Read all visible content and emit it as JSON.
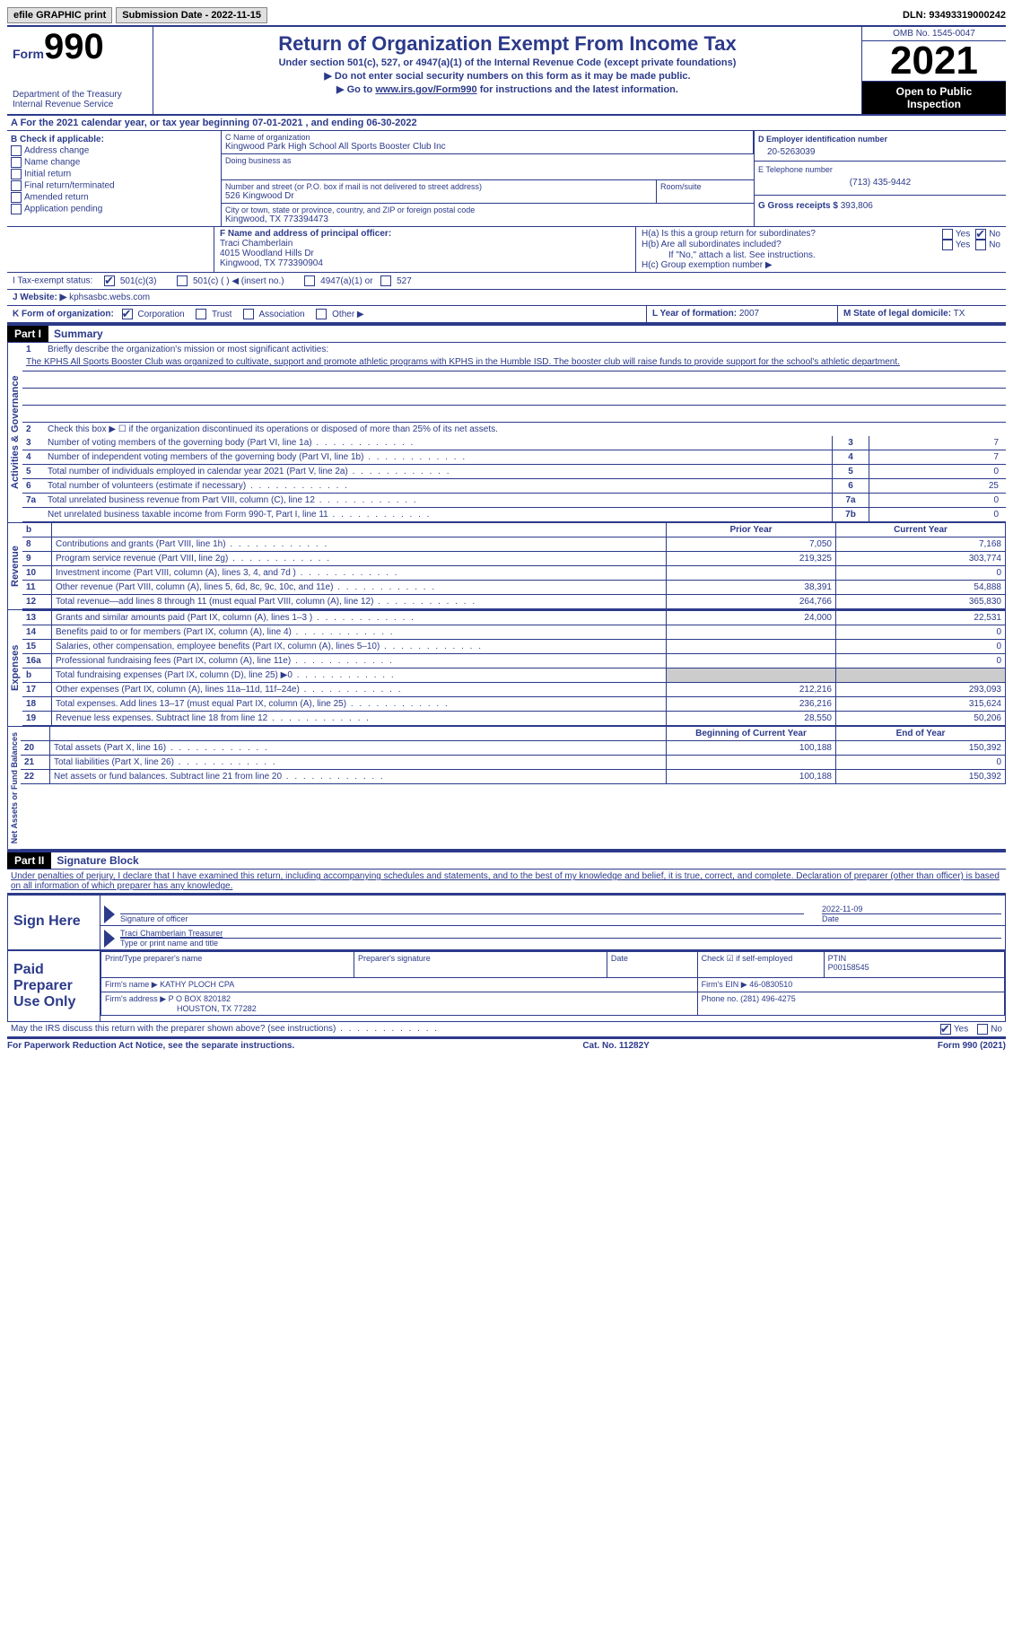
{
  "topbar": {
    "efile": "efile GRAPHIC print",
    "sub_date_label": "Submission Date - 2022-11-15",
    "dln": "DLN: 93493319000242"
  },
  "header": {
    "form_label": "Form",
    "form_num": "990",
    "dept": "Department of the Treasury",
    "irs": "Internal Revenue Service",
    "title": "Return of Organization Exempt From Income Tax",
    "sub1": "Under section 501(c), 527, or 4947(a)(1) of the Internal Revenue Code (except private foundations)",
    "sub2": "▶ Do not enter social security numbers on this form as it may be made public.",
    "sub3_pre": "▶ Go to ",
    "sub3_link": "www.irs.gov/Form990",
    "sub3_post": " for instructions and the latest information.",
    "omb": "OMB No. 1545-0047",
    "year": "2021",
    "open1": "Open to Public",
    "open2": "Inspection"
  },
  "rowA": "A For the 2021 calendar year, or tax year beginning 07-01-2021   , and ending 06-30-2022",
  "colB": {
    "title": "B Check if applicable:",
    "opts": [
      "Address change",
      "Name change",
      "Initial return",
      "Final return/terminated",
      "Amended return",
      "Application pending"
    ]
  },
  "colC": {
    "name_label": "C Name of organization",
    "name": "Kingwood Park High School All Sports Booster Club Inc",
    "dba_label": "Doing business as",
    "addr_label": "Number and street (or P.O. box if mail is not delivered to street address)",
    "room_label": "Room/suite",
    "addr": "526 Kingwood Dr",
    "city_label": "City or town, state or province, country, and ZIP or foreign postal code",
    "city": "Kingwood, TX  773394473"
  },
  "colD": {
    "ein_label": "D Employer identification number",
    "ein": "20-5263039",
    "phone_label": "E Telephone number",
    "phone": "(713) 435-9442",
    "gross_label": "G Gross receipts $",
    "gross": "393,806"
  },
  "rowF": {
    "label": "F Name and address of principal officer:",
    "name": "Traci Chamberlain",
    "addr1": "4015 Woodland Hills Dr",
    "addr2": "Kingwood, TX  773390904"
  },
  "rowH": {
    "ha": "H(a)  Is this a group return for subordinates?",
    "hb": "H(b)  Are all subordinates included?",
    "hb_note": "If \"No,\" attach a list. See instructions.",
    "hc": "H(c)  Group exemption number ▶",
    "yes": "Yes",
    "no": "No"
  },
  "rowI": {
    "label": "I   Tax-exempt status:",
    "o501c3": "501(c)(3)",
    "o501c": "501(c) (  ) ◀ (insert no.)",
    "o4947": "4947(a)(1) or",
    "o527": "527"
  },
  "rowJ": {
    "label": "J   Website: ▶",
    "val": "kphsasbc.webs.com"
  },
  "rowK": {
    "label": "K Form of organization:",
    "corp": "Corporation",
    "trust": "Trust",
    "assoc": "Association",
    "other": "Other ▶"
  },
  "rowL": {
    "label": "L Year of formation:",
    "val": "2007"
  },
  "rowM": {
    "label": "M State of legal domicile:",
    "val": "TX"
  },
  "part1": {
    "hdr": "Part I",
    "title": "Summary"
  },
  "mission": {
    "label": "Briefly describe the organization's mission or most significant activities:",
    "text": "The KPHS All Sports Booster Club was organized to cultivate, support and promote athletic programs with KPHS in the Humble ISD. The booster club will raise funds to provide support for the school's athletic department."
  },
  "lines": {
    "l2": "Check this box ▶ ☐  if the organization discontinued its operations or disposed of more than 25% of its net assets.",
    "l3": "Number of voting members of the governing body (Part VI, line 1a)",
    "l4": "Number of independent voting members of the governing body (Part VI, line 1b)",
    "l5": "Total number of individuals employed in calendar year 2021 (Part V, line 2a)",
    "l6": "Total number of volunteers (estimate if necessary)",
    "l7a": "Total unrelated business revenue from Part VIII, column (C), line 12",
    "l7b": "Net unrelated business taxable income from Form 990-T, Part I, line 11",
    "v3": "7",
    "v4": "7",
    "v5": "0",
    "v6": "25",
    "v7a": "0",
    "v7b": "0"
  },
  "rev_hdr": {
    "prior": "Prior Year",
    "curr": "Current Year"
  },
  "revenue": [
    {
      "n": "8",
      "d": "Contributions and grants (Part VIII, line 1h)",
      "p": "7,050",
      "c": "7,168"
    },
    {
      "n": "9",
      "d": "Program service revenue (Part VIII, line 2g)",
      "p": "219,325",
      "c": "303,774"
    },
    {
      "n": "10",
      "d": "Investment income (Part VIII, column (A), lines 3, 4, and 7d )",
      "p": "",
      "c": "0"
    },
    {
      "n": "11",
      "d": "Other revenue (Part VIII, column (A), lines 5, 6d, 8c, 9c, 10c, and 11e)",
      "p": "38,391",
      "c": "54,888"
    },
    {
      "n": "12",
      "d": "Total revenue—add lines 8 through 11 (must equal Part VIII, column (A), line 12)",
      "p": "264,766",
      "c": "365,830"
    }
  ],
  "expenses": [
    {
      "n": "13",
      "d": "Grants and similar amounts paid (Part IX, column (A), lines 1–3 )",
      "p": "24,000",
      "c": "22,531"
    },
    {
      "n": "14",
      "d": "Benefits paid to or for members (Part IX, column (A), line 4)",
      "p": "",
      "c": "0"
    },
    {
      "n": "15",
      "d": "Salaries, other compensation, employee benefits (Part IX, column (A), lines 5–10)",
      "p": "",
      "c": "0"
    },
    {
      "n": "16a",
      "d": "Professional fundraising fees (Part IX, column (A), line 11e)",
      "p": "",
      "c": "0"
    },
    {
      "n": "b",
      "d": "Total fundraising expenses (Part IX, column (D), line 25) ▶0",
      "p": "shaded",
      "c": "shaded"
    },
    {
      "n": "17",
      "d": "Other expenses (Part IX, column (A), lines 11a–11d, 11f–24e)",
      "p": "212,216",
      "c": "293,093"
    },
    {
      "n": "18",
      "d": "Total expenses. Add lines 13–17 (must equal Part IX, column (A), line 25)",
      "p": "236,216",
      "c": "315,624"
    },
    {
      "n": "19",
      "d": "Revenue less expenses. Subtract line 18 from line 12",
      "p": "28,550",
      "c": "50,206"
    }
  ],
  "net_hdr": {
    "beg": "Beginning of Current Year",
    "end": "End of Year"
  },
  "netassets": [
    {
      "n": "20",
      "d": "Total assets (Part X, line 16)",
      "p": "100,188",
      "c": "150,392"
    },
    {
      "n": "21",
      "d": "Total liabilities (Part X, line 26)",
      "p": "",
      "c": "0"
    },
    {
      "n": "22",
      "d": "Net assets or fund balances. Subtract line 21 from line 20",
      "p": "100,188",
      "c": "150,392"
    }
  ],
  "part2": {
    "hdr": "Part II",
    "title": "Signature Block",
    "decl": "Under penalties of perjury, I declare that I have examined this return, including accompanying schedules and statements, and to the best of my knowledge and belief, it is true, correct, and complete. Declaration of preparer (other than officer) is based on all information of which preparer has any knowledge."
  },
  "sign": {
    "here": "Sign Here",
    "sig_label": "Signature of officer",
    "date": "2022-11-09",
    "date_label": "Date",
    "name": "Traci Chamberlain  Treasurer",
    "name_label": "Type or print name and title"
  },
  "prep": {
    "title": "Paid Preparer Use Only",
    "name_label": "Print/Type preparer's name",
    "sig_label": "Preparer's signature",
    "date_label": "Date",
    "check_label": "Check ☑ if self-employed",
    "ptin_label": "PTIN",
    "ptin": "P00158545",
    "firm_name_label": "Firm's name    ▶",
    "firm_name": "KATHY PLOCH CPA",
    "firm_ein_label": "Firm's EIN ▶",
    "firm_ein": "46-0830510",
    "firm_addr_label": "Firm's address ▶",
    "firm_addr1": "P O BOX 820182",
    "firm_addr2": "HOUSTON, TX  77282",
    "phone_label": "Phone no.",
    "phone": "(281) 496-4275"
  },
  "discuss": "May the IRS discuss this return with the preparer shown above? (see instructions)",
  "footer": {
    "left": "For Paperwork Reduction Act Notice, see the separate instructions.",
    "mid": "Cat. No. 11282Y",
    "right": "Form 990 (2021)"
  },
  "vert": {
    "ag": "Activities & Governance",
    "rev": "Revenue",
    "exp": "Expenses",
    "net": "Net Assets or Fund Balances"
  }
}
